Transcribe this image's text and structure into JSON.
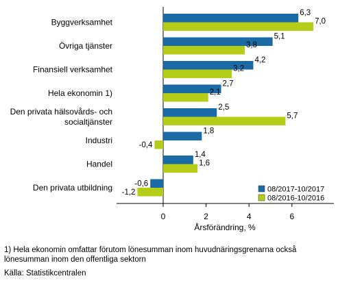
{
  "chart_data": {
    "type": "bar",
    "orientation": "horizontal",
    "categories": [
      [
        "Byggverksamhet"
      ],
      [
        "Övriga tjänster"
      ],
      [
        "Finansiell verksamhet"
      ],
      [
        "Hela ekonomin 1)"
      ],
      [
        "Den privata hälsovårds- och",
        "socialtjänster"
      ],
      [
        "Industri"
      ],
      [
        "Handel"
      ],
      [
        "Den privata utbildning"
      ]
    ],
    "series": [
      {
        "name": "08/2017-10/2017",
        "color": "#1a6aa6",
        "values": [
          6.3,
          5.1,
          4.2,
          2.7,
          2.5,
          1.8,
          1.4,
          -0.6
        ],
        "labels": [
          "6,3",
          "5,1",
          "4,2",
          "2,7",
          "2,5",
          "1,8",
          "1,4",
          "-0,6"
        ]
      },
      {
        "name": "08/2016-10/2016",
        "color": "#b5cc18",
        "values": [
          7.0,
          3.8,
          3.2,
          2.1,
          5.7,
          -0.4,
          1.6,
          -1.2
        ],
        "labels": [
          "7,0",
          "3,8",
          "3,2",
          "2,1",
          "5,7",
          "-0,4",
          "1,6",
          "-1,2"
        ]
      }
    ],
    "xlabel": "Årsförändring, %",
    "xlim": [
      -1.5,
      7.8
    ],
    "xticks": [
      0,
      2,
      4,
      6
    ],
    "xtick_labels": [
      "0",
      "2",
      "4",
      "6"
    ],
    "grid": false,
    "legend_position": "bottom-right"
  },
  "footnote": {
    "line1": "1) Hela ekonomin omfattar förutom lönesumman inom huvudnäringsgrenarna också",
    "line2": "lönesumman inom den offentliga sektorn"
  },
  "source": "Källa: Statistikcentralen"
}
